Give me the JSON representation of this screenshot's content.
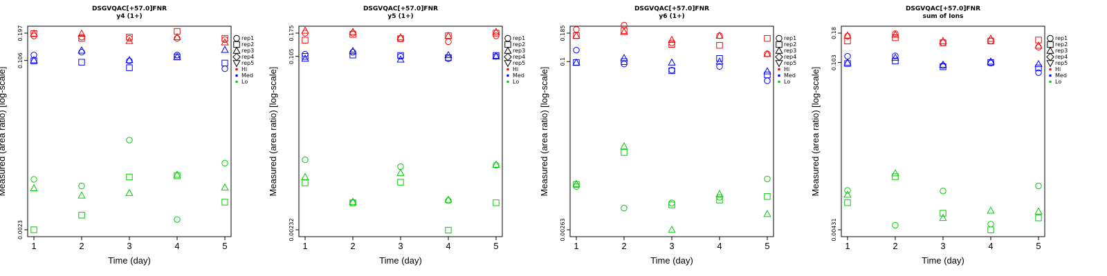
{
  "chart_data": [
    {
      "type": "scatter",
      "title": "DSGVQAC[+57.0]FNR",
      "subtitle": "y4 (1+)",
      "xlabel": "Time (day)",
      "ylabel": "Measured (area ratio) [log-scale]",
      "y_scale": "log",
      "ylim": [
        0.0023,
        0.197
      ],
      "yticks": [
        "0.197",
        "0.106",
        "0.0023"
      ],
      "x": [
        1,
        2,
        3,
        4,
        5
      ],
      "legend": [
        "rep1",
        "rep2",
        "rep3",
        "rep4",
        "rep5",
        "Hi",
        "Med",
        "Lo"
      ],
      "groups": [
        {
          "name": "Hi",
          "color": "#ff0000",
          "reps": {
            "rep1": [
              0.185,
              0.18,
              0.175,
              0.175,
              0.17
            ],
            "rep2": [
              0.195,
              0.175,
              0.18,
              0.205,
              0.175
            ],
            "rep3": [
              0.195,
              0.195,
              0.165,
              0.18,
              0.16
            ]
          }
        },
        {
          "name": "Med",
          "color": "#0000ff",
          "reps": {
            "rep1": [
              0.12,
              0.128,
              0.105,
              0.12,
              0.088
            ],
            "rep2": [
              0.105,
              0.102,
              0.09,
              0.115,
              0.1
            ],
            "rep3": [
              0.107,
              0.133,
              0.107,
              0.115,
              0.135
            ]
          }
        },
        {
          "name": "Lo",
          "color": "#00cc00",
          "reps": {
            "rep1": [
              0.0072,
              0.0062,
              0.0175,
              0.0029,
              0.0104
            ],
            "rep2": [
              0.0023,
              0.0032,
              0.0076,
              0.0078,
              0.0043
            ],
            "rep3": [
              0.0059,
              0.005,
              0.0053,
              0.008,
              0.006
            ]
          }
        }
      ]
    },
    {
      "type": "scatter",
      "title": "DSGVQAC[+57.0]FNR",
      "subtitle": "y5 (1+)",
      "xlabel": "Time (day)",
      "ylabel": "Measured (area ratio) [log-scale]",
      "y_scale": "log",
      "ylim": [
        0.00232,
        0.175
      ],
      "yticks": [
        "0.175",
        "0.105",
        "0.00232"
      ],
      "x": [
        1,
        2,
        3,
        4,
        5
      ],
      "legend": [
        "rep1",
        "rep2",
        "rep3",
        "rep4",
        "rep5",
        "Hi",
        "Med",
        "Lo"
      ],
      "groups": [
        {
          "name": "Hi",
          "color": "#ff0000",
          "reps": {
            "rep1": [
              0.175,
              0.175,
              0.155,
              0.145,
              0.165
            ],
            "rep2": [
              0.15,
              0.17,
              0.155,
              0.165,
              0.175
            ],
            "rep3": [
              0.185,
              0.18,
              0.16,
              0.165,
              0.18
            ]
          }
        },
        {
          "name": "Med",
          "color": "#0000ff",
          "reps": {
            "rep1": [
              0.11,
              0.115,
              0.105,
              0.1,
              0.105
            ],
            "rep2": [
              0.105,
              0.108,
              0.107,
              0.102,
              0.107
            ],
            "rep3": [
              0.1,
              0.118,
              0.098,
              0.108,
              0.105
            ]
          }
        },
        {
          "name": "Lo",
          "color": "#00cc00",
          "reps": {
            "rep1": [
              0.0108,
              0.0042,
              0.0093,
              0.0044,
              0.0096
            ],
            "rep2": [
              0.0065,
              0.0042,
              0.0066,
              0.0023,
              0.0042
            ],
            "rep3": [
              0.0074,
              0.0043,
              0.0081,
              0.0045,
              0.0097
            ]
          }
        }
      ]
    },
    {
      "type": "scatter",
      "title": "DSGVQAC[+57.0]FNR",
      "subtitle": "y6 (1+)",
      "xlabel": "Time (day)",
      "ylabel": "Measured (area ratio) [log-scale]",
      "y_scale": "log",
      "ylim": [
        0.00263,
        0.185
      ],
      "yticks": [
        "0.185",
        "0.1",
        "0.00263"
      ],
      "x": [
        1,
        2,
        3,
        4,
        5
      ],
      "legend": [
        "rep1",
        "rep2",
        "rep3",
        "rep4",
        "rep5",
        "Hi",
        "Med",
        "Lo"
      ],
      "groups": [
        {
          "name": "Hi",
          "color": "#ff0000",
          "reps": {
            "rep1": [
              0.2,
              0.22,
              0.15,
              0.175,
              0.118
            ],
            "rep2": [
              0.175,
              0.195,
              0.145,
              0.142,
              0.165
            ],
            "rep3": [
              0.175,
              0.19,
              0.16,
              0.175,
              0.118
            ]
          }
        },
        {
          "name": "Med",
          "color": "#0000ff",
          "reps": {
            "rep1": [
              0.128,
              0.095,
              0.083,
              0.09,
              0.066
            ],
            "rep2": [
              0.098,
              0.1,
              0.082,
              0.107,
              0.075
            ],
            "rep3": [
              0.098,
              0.108,
              0.098,
              0.1,
              0.081
            ]
          }
        },
        {
          "name": "Lo",
          "color": "#00cc00",
          "reps": {
            "rep1": [
              0.0067,
              0.0042,
              0.0047,
              0.0053,
              0.0079
            ],
            "rep2": [
              0.007,
              0.014,
              0.0045,
              0.005,
              0.0054
            ],
            "rep3": [
              0.0071,
              0.016,
              0.00263,
              0.0057,
              0.0037
            ]
          }
        }
      ]
    },
    {
      "type": "scatter",
      "title": "DSGVQAC[+57.0]FNR",
      "subtitle": "sum of Ions",
      "xlabel": "Time (day)",
      "ylabel": "Measured (area ratio) [log-scale]",
      "y_scale": "log",
      "ylim": [
        0.00431,
        0.18
      ],
      "yticks": [
        "0.18",
        "0.103",
        "0.00431"
      ],
      "x": [
        1,
        2,
        3,
        4,
        5
      ],
      "legend": [
        "rep1",
        "rep2",
        "rep3",
        "rep4",
        "rep5",
        "Hi",
        "Med",
        "Lo"
      ],
      "groups": [
        {
          "name": "Hi",
          "color": "#ff0000",
          "reps": {
            "rep1": [
              0.17,
              0.178,
              0.15,
              0.155,
              0.138
            ],
            "rep2": [
              0.155,
              0.165,
              0.15,
              0.155,
              0.158
            ],
            "rep3": [
              0.172,
              0.175,
              0.155,
              0.162,
              0.142
            ]
          }
        },
        {
          "name": "Med",
          "color": "#0000ff",
          "reps": {
            "rep1": [
              0.116,
              0.117,
              0.097,
              0.102,
              0.085
            ],
            "rep2": [
              0.101,
              0.106,
              0.095,
              0.103,
              0.093
            ],
            "rep3": [
              0.103,
              0.113,
              0.099,
              0.105,
              0.1
            ]
          }
        },
        {
          "name": "Lo",
          "color": "#00cc00",
          "reps": {
            "rep1": [
              0.0091,
              0.0047,
              0.009,
              0.0048,
              0.0099
            ],
            "rep2": [
              0.0072,
              0.0118,
              0.0059,
              0.0043,
              0.0054
            ],
            "rep3": [
              0.0084,
              0.0126,
              0.0054,
              0.0062,
              0.0061
            ]
          }
        }
      ]
    }
  ]
}
